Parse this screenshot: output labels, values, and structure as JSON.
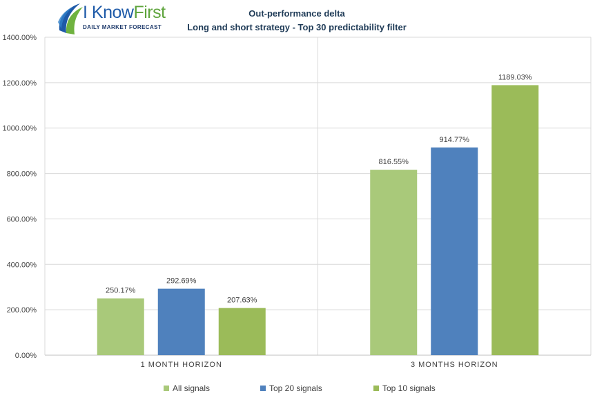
{
  "logo": {
    "brand_i": "I",
    "brand_know": "Know",
    "brand_first": "First",
    "tagline": "DAILY MARKET FORECAST"
  },
  "colors": {
    "all_signals": "#a9c97a",
    "top20": "#4f81bd",
    "top10": "#9bbb59",
    "grid": "#d9d9d9",
    "text": "#404040"
  },
  "chart_data": {
    "type": "bar",
    "title": "Out-performance delta",
    "subtitle": "Long and short strategy - Top 30 predictability filter",
    "categories": [
      "1 MONTH HORIZON",
      "3 MONTHS HORIZON"
    ],
    "series": [
      {
        "name": "All signals",
        "values": [
          250.17,
          816.55
        ],
        "labels": [
          "250.17%",
          "816.55%"
        ]
      },
      {
        "name": "Top 20 signals",
        "values": [
          292.69,
          914.77
        ],
        "labels": [
          "292.69%",
          "914.77%"
        ]
      },
      {
        "name": "Top 10 signals",
        "values": [
          207.63,
          1189.03
        ],
        "labels": [
          "207.63%",
          "1189.03%"
        ]
      }
    ],
    "ylim": [
      0,
      1400
    ],
    "yticks": [
      0,
      200,
      400,
      600,
      800,
      1000,
      1200,
      1400
    ],
    "ytick_labels": [
      "0.00%",
      "200.00%",
      "400.00%",
      "600.00%",
      "800.00%",
      "1000.00%",
      "1200.00%",
      "1400.00%"
    ],
    "grid": true,
    "legend": "bottom"
  }
}
